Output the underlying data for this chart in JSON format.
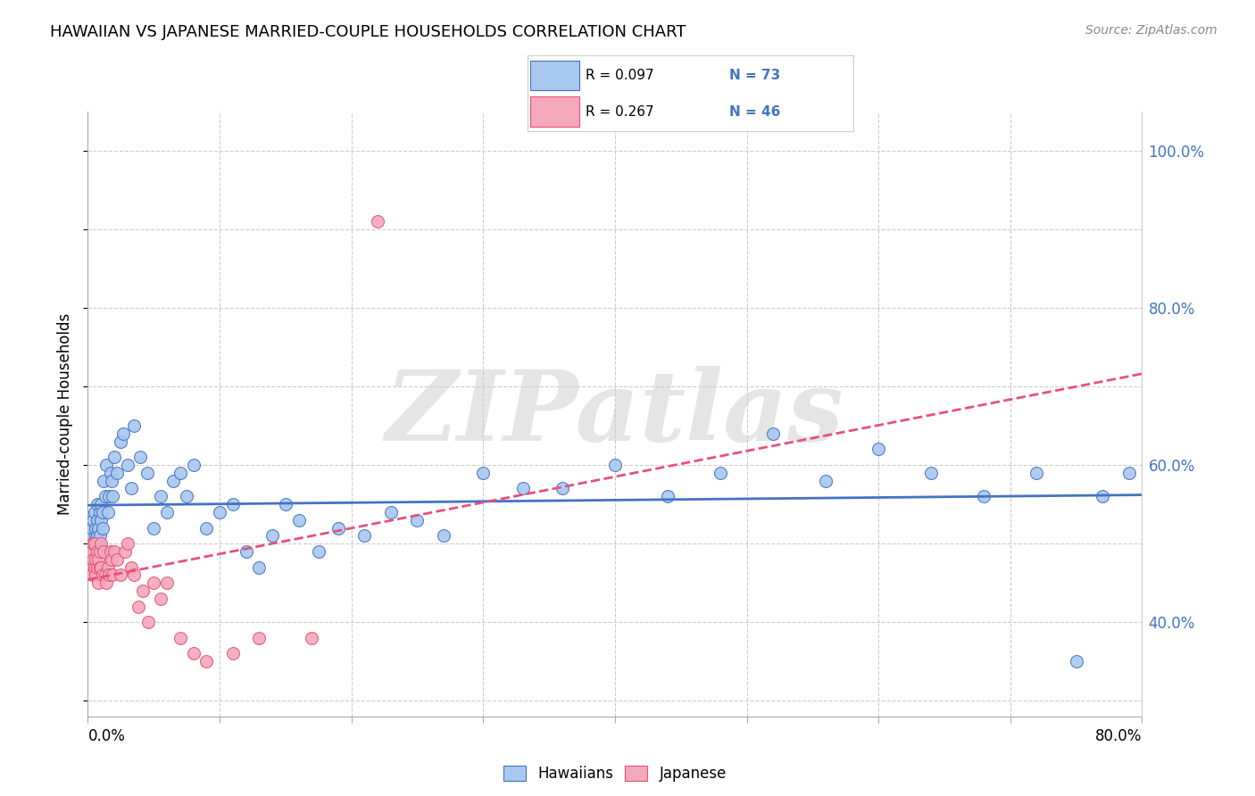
{
  "title": "HAWAIIAN VS JAPANESE MARRIED-COUPLE HOUSEHOLDS CORRELATION CHART",
  "source": "Source: ZipAtlas.com",
  "ylabel": "Married-couple Households",
  "yticks": [
    "40.0%",
    "60.0%",
    "80.0%",
    "100.0%"
  ],
  "ytick_vals": [
    0.4,
    0.6,
    0.8,
    1.0
  ],
  "xlim": [
    0.0,
    0.8
  ],
  "ylim": [
    0.28,
    1.05
  ],
  "hawaiians_color": "#A8C8F0",
  "japanese_color": "#F4A8BC",
  "trendline_hawaiians_color": "#4472C4",
  "trendline_japanese_color": "#E8507A",
  "watermark": "ZIPatlas",
  "hawaiians_x": [
    0.002,
    0.003,
    0.004,
    0.004,
    0.005,
    0.005,
    0.006,
    0.006,
    0.006,
    0.007,
    0.007,
    0.007,
    0.008,
    0.008,
    0.009,
    0.009,
    0.01,
    0.01,
    0.011,
    0.011,
    0.012,
    0.013,
    0.014,
    0.015,
    0.016,
    0.017,
    0.018,
    0.019,
    0.02,
    0.022,
    0.025,
    0.027,
    0.03,
    0.033,
    0.035,
    0.04,
    0.045,
    0.05,
    0.055,
    0.06,
    0.065,
    0.07,
    0.075,
    0.08,
    0.09,
    0.1,
    0.11,
    0.12,
    0.13,
    0.14,
    0.15,
    0.16,
    0.175,
    0.19,
    0.21,
    0.23,
    0.25,
    0.27,
    0.3,
    0.33,
    0.36,
    0.4,
    0.44,
    0.48,
    0.52,
    0.56,
    0.6,
    0.64,
    0.68,
    0.72,
    0.75,
    0.77,
    0.79
  ],
  "hawaiians_y": [
    0.51,
    0.52,
    0.5,
    0.53,
    0.49,
    0.54,
    0.51,
    0.52,
    0.5,
    0.53,
    0.51,
    0.55,
    0.5,
    0.52,
    0.54,
    0.51,
    0.53,
    0.55,
    0.52,
    0.54,
    0.58,
    0.56,
    0.6,
    0.54,
    0.56,
    0.59,
    0.58,
    0.56,
    0.61,
    0.59,
    0.63,
    0.64,
    0.6,
    0.57,
    0.65,
    0.61,
    0.59,
    0.52,
    0.56,
    0.54,
    0.58,
    0.59,
    0.56,
    0.6,
    0.52,
    0.54,
    0.55,
    0.49,
    0.47,
    0.51,
    0.55,
    0.53,
    0.49,
    0.52,
    0.51,
    0.54,
    0.53,
    0.51,
    0.59,
    0.57,
    0.57,
    0.6,
    0.56,
    0.59,
    0.64,
    0.58,
    0.62,
    0.59,
    0.56,
    0.59,
    0.35,
    0.56,
    0.59
  ],
  "japanese_x": [
    0.002,
    0.003,
    0.003,
    0.004,
    0.004,
    0.005,
    0.005,
    0.006,
    0.006,
    0.007,
    0.007,
    0.008,
    0.008,
    0.009,
    0.009,
    0.01,
    0.01,
    0.011,
    0.012,
    0.013,
    0.014,
    0.015,
    0.016,
    0.017,
    0.018,
    0.019,
    0.02,
    0.022,
    0.025,
    0.028,
    0.03,
    0.033,
    0.035,
    0.038,
    0.042,
    0.046,
    0.05,
    0.055,
    0.06,
    0.07,
    0.08,
    0.09,
    0.11,
    0.13,
    0.17,
    0.22
  ],
  "japanese_y": [
    0.49,
    0.47,
    0.46,
    0.5,
    0.48,
    0.47,
    0.5,
    0.48,
    0.46,
    0.49,
    0.47,
    0.48,
    0.45,
    0.47,
    0.49,
    0.5,
    0.47,
    0.46,
    0.49,
    0.46,
    0.45,
    0.47,
    0.46,
    0.49,
    0.48,
    0.46,
    0.49,
    0.48,
    0.46,
    0.49,
    0.5,
    0.47,
    0.46,
    0.42,
    0.44,
    0.4,
    0.45,
    0.43,
    0.45,
    0.38,
    0.36,
    0.35,
    0.36,
    0.38,
    0.38,
    0.91
  ],
  "trendline_j_x_end": 0.8,
  "bottom_legend_items": [
    "Hawaiians",
    "Japanese"
  ]
}
